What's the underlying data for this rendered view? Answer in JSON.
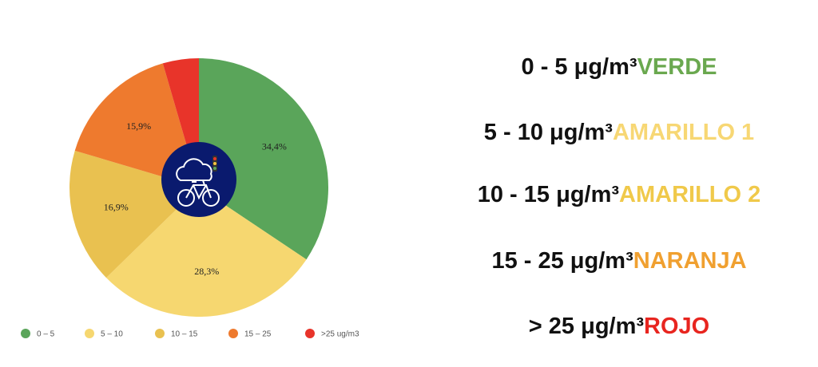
{
  "chart_data": {
    "type": "pie",
    "categories": [
      "0 – 5",
      "5 – 10",
      "10 – 15",
      "15 – 25",
      ">25 ug/m3"
    ],
    "values": [
      34.4,
      28.3,
      16.9,
      15.9,
      4.5
    ],
    "value_labels": [
      "34,4%",
      "28,3%",
      "16,9%",
      "15,9%",
      null
    ],
    "colors": [
      "#5aa55a",
      "#f6d770",
      "#e9c150",
      "#ee7a2e",
      "#e8342a"
    ]
  },
  "scale": [
    {
      "range": "0 - 5 μg/m³",
      "name": "VERDE",
      "color": "#6aa84f"
    },
    {
      "range": "5 - 10 μg/m³",
      "name": "AMARILLO 1",
      "color": "#f7d774"
    },
    {
      "range": "10 - 15 μg/m³",
      "name": "AMARILLO 2",
      "color": "#f0c94a"
    },
    {
      "range": "15 - 25 μg/m³",
      "name": "NARANJA",
      "color": "#f0a030"
    },
    {
      "range": "> 25 μg/m³",
      "name": "ROJO",
      "color": "#e8251f"
    }
  ]
}
